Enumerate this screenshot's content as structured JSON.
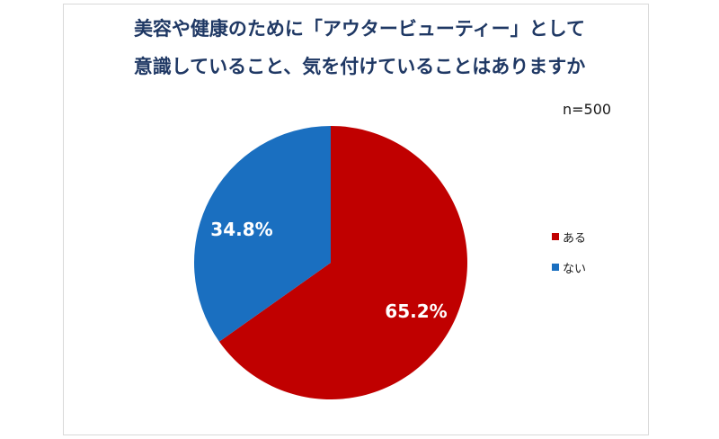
{
  "chart_data": {
    "type": "pie",
    "title_lines": [
      "美容や健康のために「アウタービューティー」として",
      "意識していること、気を付けていることはありますか"
    ],
    "note": "n=500",
    "categories": [
      "ある",
      "ない"
    ],
    "values": [
      65.2,
      34.8
    ],
    "labels": [
      "65.2%",
      "34.8%"
    ],
    "colors": [
      "#c00000",
      "#1a6fc0"
    ],
    "legend_position": "right"
  }
}
